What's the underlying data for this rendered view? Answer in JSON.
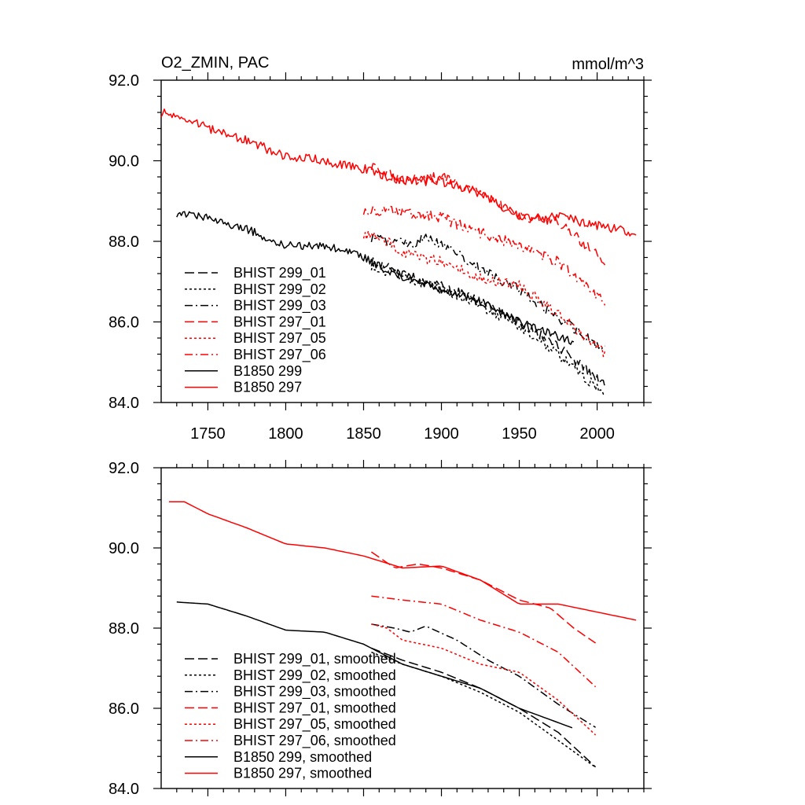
{
  "chart_data": [
    {
      "type": "line",
      "title": "O2_ZMIN, PAC",
      "units_label": "mmol/m^3",
      "xlim": [
        1720,
        2030
      ],
      "ylim": [
        84.0,
        92.0
      ],
      "x_ticks": [
        1750,
        1800,
        1850,
        1900,
        1950,
        2000
      ],
      "x_tick_labels": [
        "1750",
        "1800",
        "1850",
        "1900",
        "1950",
        "2000"
      ],
      "y_ticks": [
        84,
        86,
        88,
        90,
        92
      ],
      "y_tick_labels": [
        "84.0",
        "86.0",
        "88.0",
        "90.0",
        "92.0"
      ],
      "grid": false,
      "legend_position": "lower-left",
      "series": [
        {
          "name": "BHIST 299_01",
          "color": "#000000",
          "dash": "dash",
          "noise": 0.12,
          "points": [
            [
              1855,
              87.5
            ],
            [
              1875,
              87.2
            ],
            [
              1900,
              86.9
            ],
            [
              1925,
              86.5
            ],
            [
              1950,
              86.0
            ],
            [
              1975,
              85.4
            ],
            [
              2005,
              84.4
            ]
          ]
        },
        {
          "name": "BHIST 299_02",
          "color": "#000000",
          "dash": "dot",
          "noise": 0.12,
          "points": [
            [
              1855,
              87.4
            ],
            [
              1875,
              87.1
            ],
            [
              1900,
              86.8
            ],
            [
              1925,
              86.4
            ],
            [
              1950,
              85.9
            ],
            [
              1975,
              85.2
            ],
            [
              2005,
              84.2
            ]
          ]
        },
        {
          "name": "BHIST 299_03",
          "color": "#000000",
          "dash": "dashdot",
          "noise": 0.12,
          "points": [
            [
              1855,
              88.1
            ],
            [
              1870,
              88.0
            ],
            [
              1880,
              87.9
            ],
            [
              1890,
              88.1
            ],
            [
              1910,
              87.7
            ],
            [
              1930,
              87.2
            ],
            [
              1950,
              86.8
            ],
            [
              1975,
              86.1
            ],
            [
              2005,
              85.3
            ]
          ]
        },
        {
          "name": "BHIST 297_01",
          "color": "#ff0000",
          "dash": "dash",
          "noise": 0.13,
          "points": [
            [
              1855,
              89.9
            ],
            [
              1875,
              89.5
            ],
            [
              1900,
              89.6
            ],
            [
              1925,
              89.2
            ],
            [
              1950,
              88.6
            ],
            [
              1975,
              88.5
            ],
            [
              2005,
              87.5
            ]
          ]
        },
        {
          "name": "BHIST 297_05",
          "color": "#ff0000",
          "dash": "dot",
          "noise": 0.13,
          "points": [
            [
              1850,
              88.2
            ],
            [
              1865,
              88.0
            ],
            [
              1875,
              87.7
            ],
            [
              1900,
              87.5
            ],
            [
              1925,
              87.1
            ],
            [
              1950,
              86.9
            ],
            [
              1975,
              86.2
            ],
            [
              2005,
              85.2
            ]
          ]
        },
        {
          "name": "BHIST 297_06",
          "color": "#ff0000",
          "dash": "dashdot",
          "noise": 0.14,
          "points": [
            [
              1850,
              88.8
            ],
            [
              1875,
              88.7
            ],
            [
              1900,
              88.6
            ],
            [
              1925,
              88.2
            ],
            [
              1950,
              87.9
            ],
            [
              1975,
              87.5
            ],
            [
              2005,
              86.5
            ]
          ]
        },
        {
          "name": "B1850 299",
          "color": "#000000",
          "dash": "solid",
          "noise": 0.1,
          "points": [
            [
              1730,
              88.7
            ],
            [
              1750,
              88.6
            ],
            [
              1775,
              88.3
            ],
            [
              1800,
              87.9
            ],
            [
              1825,
              87.9
            ],
            [
              1850,
              87.6
            ],
            [
              1875,
              87.1
            ],
            [
              1900,
              86.8
            ],
            [
              1925,
              86.5
            ],
            [
              1950,
              86.0
            ],
            [
              1985,
              85.5
            ]
          ]
        },
        {
          "name": "B1850 297",
          "color": "#ff0000",
          "dash": "solid",
          "noise": 0.12,
          "points": [
            [
              1720,
              91.2
            ],
            [
              1735,
              91.1
            ],
            [
              1750,
              90.8
            ],
            [
              1775,
              90.5
            ],
            [
              1800,
              90.1
            ],
            [
              1825,
              90.0
            ],
            [
              1850,
              89.8
            ],
            [
              1875,
              89.5
            ],
            [
              1900,
              89.5
            ],
            [
              1925,
              89.2
            ],
            [
              1950,
              88.6
            ],
            [
              1975,
              88.6
            ],
            [
              2000,
              88.4
            ],
            [
              2025,
              88.2
            ]
          ]
        }
      ]
    },
    {
      "type": "line",
      "xlim": [
        1720,
        2030
      ],
      "ylim": [
        84.0,
        92.0
      ],
      "y_ticks": [
        84,
        86,
        88,
        90,
        92
      ],
      "y_tick_labels": [
        "84.0",
        "86.0",
        "88.0",
        "90.0",
        "92.0"
      ],
      "grid": false,
      "legend_position": "lower-left",
      "series": [
        {
          "name": "BHIST 299_01, smoothed",
          "color": "#000000",
          "dash": "dash",
          "points": [
            [
              1855,
              87.5
            ],
            [
              1875,
              87.2
            ],
            [
              1900,
              86.9
            ],
            [
              1925,
              86.5
            ],
            [
              1950,
              86.0
            ],
            [
              1975,
              85.4
            ],
            [
              2000,
              84.5
            ]
          ]
        },
        {
          "name": "BHIST 299_02, smoothed",
          "color": "#000000",
          "dash": "dot",
          "points": [
            [
              1855,
              87.4
            ],
            [
              1875,
              87.1
            ],
            [
              1900,
              86.8
            ],
            [
              1925,
              86.4
            ],
            [
              1950,
              85.9
            ],
            [
              1975,
              85.2
            ],
            [
              2000,
              84.5
            ]
          ]
        },
        {
          "name": "BHIST 299_03, smoothed",
          "color": "#000000",
          "dash": "dashdot",
          "points": [
            [
              1855,
              88.1
            ],
            [
              1870,
              88.0
            ],
            [
              1880,
              87.9
            ],
            [
              1890,
              88.05
            ],
            [
              1910,
              87.7
            ],
            [
              1930,
              87.2
            ],
            [
              1950,
              86.8
            ],
            [
              1975,
              86.1
            ],
            [
              2000,
              85.5
            ]
          ]
        },
        {
          "name": "BHIST 297_01, smoothed",
          "color": "#ff0000",
          "dash": "dash",
          "points": [
            [
              1855,
              89.9
            ],
            [
              1870,
              89.5
            ],
            [
              1885,
              89.6
            ],
            [
              1900,
              89.5
            ],
            [
              1925,
              89.2
            ],
            [
              1950,
              88.7
            ],
            [
              1970,
              88.5
            ],
            [
              1985,
              88.0
            ],
            [
              2000,
              87.6
            ]
          ]
        },
        {
          "name": "BHIST 297_05, smoothed",
          "color": "#ff0000",
          "dash": "dot",
          "points": [
            [
              1855,
              88.1
            ],
            [
              1865,
              88.0
            ],
            [
              1875,
              87.7
            ],
            [
              1900,
              87.5
            ],
            [
              1925,
              87.1
            ],
            [
              1950,
              86.9
            ],
            [
              1975,
              86.2
            ],
            [
              2000,
              85.3
            ]
          ]
        },
        {
          "name": "BHIST 297_06, smoothed",
          "color": "#ff0000",
          "dash": "dashdot",
          "points": [
            [
              1855,
              88.8
            ],
            [
              1875,
              88.7
            ],
            [
              1900,
              88.6
            ],
            [
              1925,
              88.2
            ],
            [
              1950,
              87.9
            ],
            [
              1975,
              87.4
            ],
            [
              2000,
              86.5
            ]
          ]
        },
        {
          "name": "B1850 299, smoothed",
          "color": "#000000",
          "dash": "solid",
          "points": [
            [
              1730,
              88.65
            ],
            [
              1750,
              88.6
            ],
            [
              1775,
              88.3
            ],
            [
              1800,
              87.95
            ],
            [
              1825,
              87.9
            ],
            [
              1850,
              87.6
            ],
            [
              1875,
              87.1
            ],
            [
              1900,
              86.8
            ],
            [
              1925,
              86.5
            ],
            [
              1950,
              86.0
            ],
            [
              1985,
              85.5
            ]
          ]
        },
        {
          "name": "B1850 297, smoothed",
          "color": "#ff0000",
          "dash": "solid",
          "points": [
            [
              1725,
              91.15
            ],
            [
              1735,
              91.15
            ],
            [
              1750,
              90.85
            ],
            [
              1775,
              90.5
            ],
            [
              1800,
              90.1
            ],
            [
              1825,
              90.0
            ],
            [
              1850,
              89.8
            ],
            [
              1875,
              89.5
            ],
            [
              1900,
              89.55
            ],
            [
              1925,
              89.2
            ],
            [
              1950,
              88.6
            ],
            [
              1975,
              88.6
            ],
            [
              2000,
              88.4
            ],
            [
              2025,
              88.2
            ]
          ]
        }
      ]
    }
  ]
}
